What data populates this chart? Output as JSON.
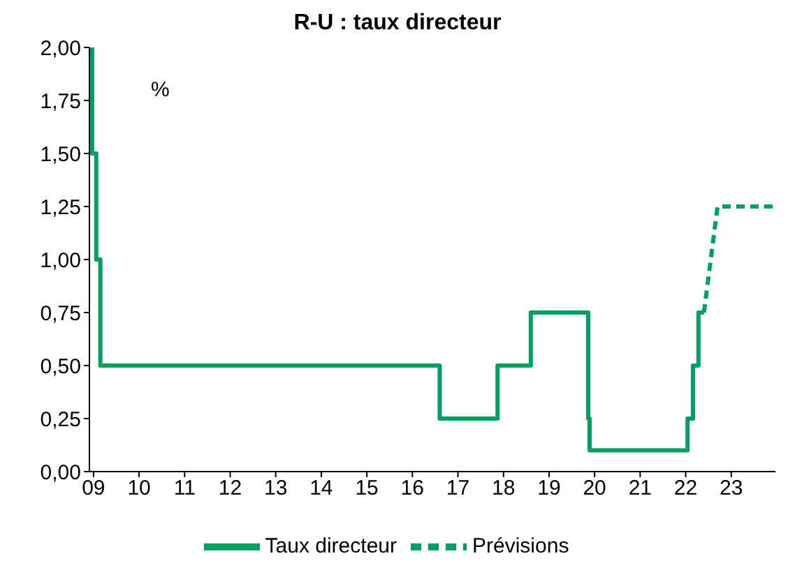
{
  "chart_data": {
    "type": "step",
    "title": "R-U : taux directeur",
    "annotations": [
      "%"
    ],
    "xlim": [
      2008.91,
      2023.97
    ],
    "xticks": [
      {
        "value": 2009,
        "label": "09"
      },
      {
        "value": 2010,
        "label": "10"
      },
      {
        "value": 2011,
        "label": "11"
      },
      {
        "value": 2012,
        "label": "12"
      },
      {
        "value": 2013,
        "label": "13"
      },
      {
        "value": 2014,
        "label": "14"
      },
      {
        "value": 2015,
        "label": "15"
      },
      {
        "value": 2016,
        "label": "16"
      },
      {
        "value": 2017,
        "label": "17"
      },
      {
        "value": 2018,
        "label": "18"
      },
      {
        "value": 2019,
        "label": "19"
      },
      {
        "value": 2020,
        "label": "20"
      },
      {
        "value": 2021,
        "label": "21"
      },
      {
        "value": 2022,
        "label": "22"
      },
      {
        "value": 2023,
        "label": "23"
      }
    ],
    "ylim": [
      0,
      2
    ],
    "yticks": [
      {
        "value": 0,
        "label": "0,00"
      },
      {
        "value": 0.25,
        "label": "0,25"
      },
      {
        "value": 0.5,
        "label": "0,50"
      },
      {
        "value": 0.75,
        "label": "0,75"
      },
      {
        "value": 1,
        "label": "1,00"
      },
      {
        "value": 1.25,
        "label": "1,25"
      },
      {
        "value": 1.5,
        "label": "1,50"
      },
      {
        "value": 1.75,
        "label": "1,75"
      },
      {
        "value": 2,
        "label": "2,00"
      }
    ],
    "grid": false,
    "legend": "bottom",
    "marker": "none",
    "series": [
      {
        "name": "Taux directeur",
        "color": "#00a060",
        "line_style": "solid",
        "x": [
          2008.91,
          2008.97,
          2009.06,
          2009.15,
          2016.6,
          2017.87,
          2018.6,
          2019.86,
          2019.89,
          2022.04,
          2022.16,
          2022.28,
          2022.4
        ],
        "values": [
          2,
          1.5,
          1,
          0.5,
          0.25,
          0.5,
          0.75,
          0.25,
          0.1,
          0.25,
          0.5,
          0.75,
          0.75
        ]
      },
      {
        "name": "Prévisions",
        "color": "#00a060",
        "type": "line",
        "line_style": "dashed",
        "x": [
          2022.4,
          2022.7,
          2023.97
        ],
        "values": [
          0.75,
          1.25,
          1.25
        ]
      }
    ]
  }
}
